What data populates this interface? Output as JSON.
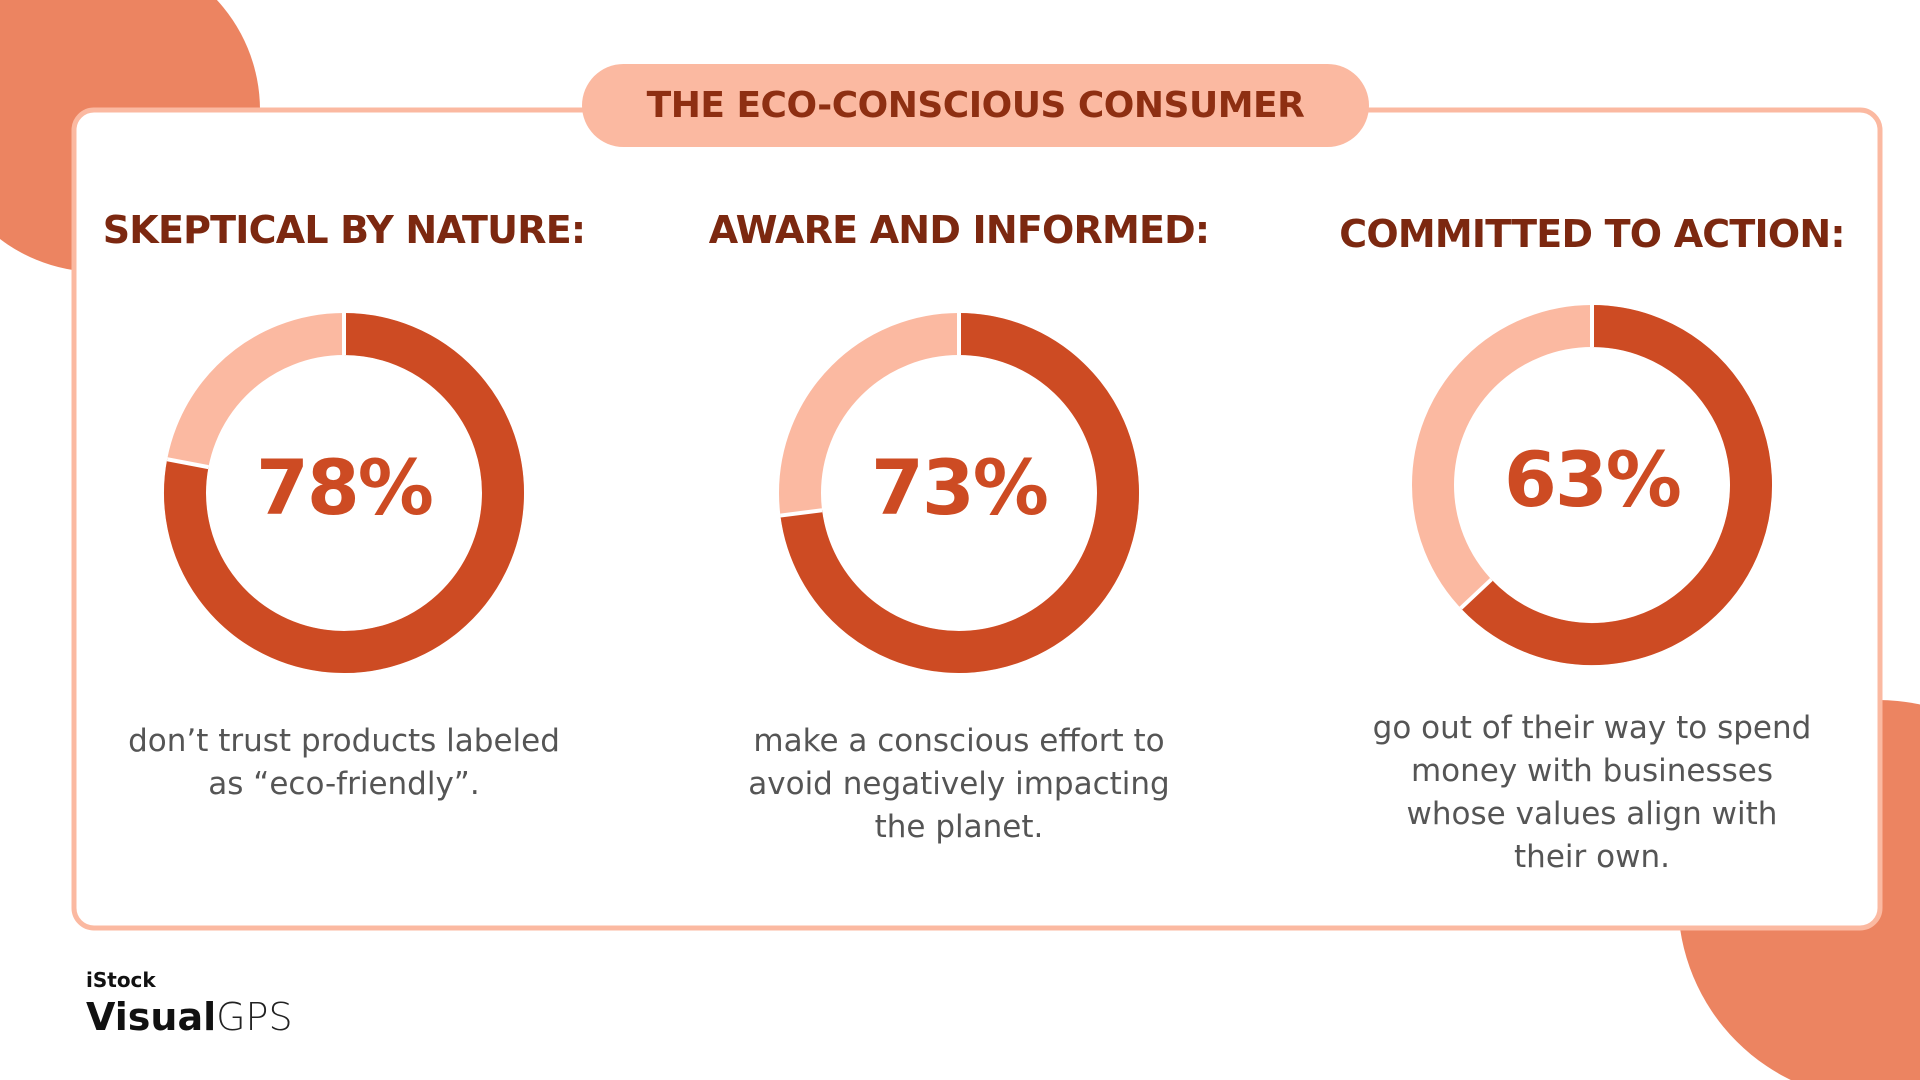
{
  "title": "THE ECO-CONSCIOUS CONSUMER",
  "chart_data": [
    {
      "type": "donut",
      "title": "SKEPTICAL BY NATURE:",
      "values": [
        78
      ],
      "value_labels": [
        "78%"
      ],
      "color": "#cd4b23",
      "track_color": "#fbb9a1",
      "description": "don’t trust products labeled as “eco-friendly”."
    },
    {
      "type": "donut",
      "title": "AWARE AND INFORMED:",
      "values": [
        73
      ],
      "value_labels": [
        "73%"
      ],
      "color": "#cd4b23",
      "track_color": "#fbb9a1",
      "description": "make a conscious effort to avoid negatively impacting the planet."
    },
    {
      "type": "donut",
      "title": "COMMITTED TO ACTION:",
      "values": [
        63
      ],
      "value_labels": [
        "63%"
      ],
      "color": "#cd4b23",
      "track_color": "#fbb9a1",
      "description": "go out of their way to spend money with businesses whose values align with their own."
    }
  ],
  "brand": {
    "top": "iStock",
    "main": "Visual",
    "sub": "GPS"
  }
}
